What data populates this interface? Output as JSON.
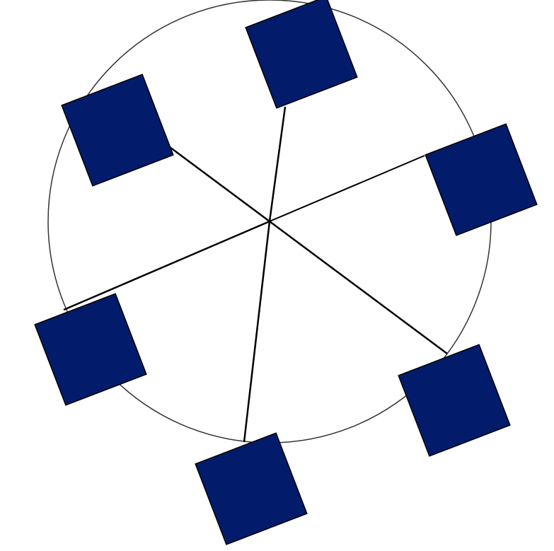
{
  "diagram": {
    "type": "hub-and-spoke",
    "node_count": 6,
    "colors": {
      "background": "#ffffff",
      "node_fill": "#021c6b",
      "node_stroke": "#000000",
      "spoke_stroke": "#000000",
      "ring_stroke": "#333333"
    }
  }
}
